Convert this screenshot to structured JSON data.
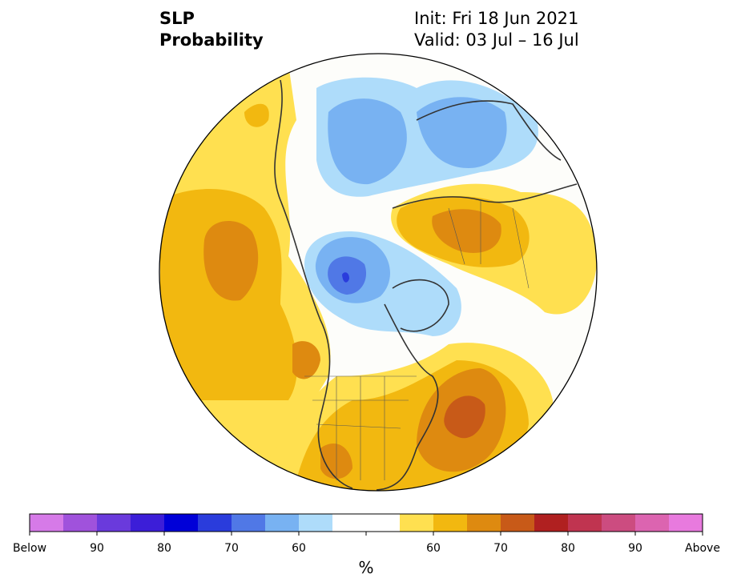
{
  "header": {
    "title_line1": "SLP",
    "title_line2": "Probability",
    "init_text": "Init: Fri 18 Jun 2021",
    "valid_text": "Valid: 03 Jul – 16 Jul"
  },
  "colorbar": {
    "unit": "%",
    "colors": [
      "#d67ae8",
      "#a052dc",
      "#6a3adc",
      "#3c1ed8",
      "#0000d8",
      "#2a3cdc",
      "#5078e6",
      "#78b2f2",
      "#aedcfa",
      "#ffffff",
      "#ffffff",
      "#ffe050",
      "#f2b810",
      "#de8a10",
      "#c85a18",
      "#b02020",
      "#c03450",
      "#cc4c80",
      "#dc64b0",
      "#e87ade"
    ],
    "tick_labels": [
      "Below",
      "90",
      "80",
      "70",
      "60",
      "60",
      "70",
      "80",
      "90",
      "Above"
    ]
  },
  "map": {
    "land_colors": {
      "above_1": "#ffe050",
      "above_2": "#f2b810",
      "above_3": "#de8a10",
      "above_4": "#c85a18",
      "below_1": "#aedcfa",
      "below_2": "#78b2f2",
      "below_3": "#5078e6",
      "below_4": "#2a3cdc"
    }
  }
}
